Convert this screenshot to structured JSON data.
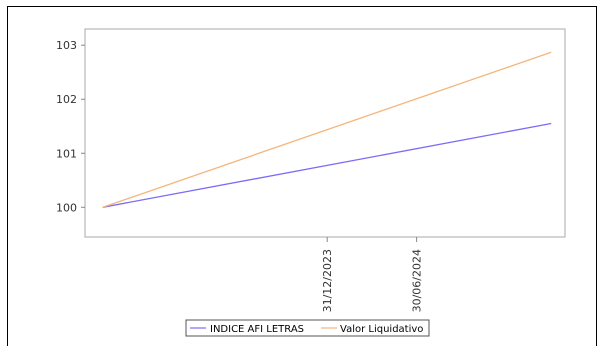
{
  "chart_data": {
    "type": "line",
    "title": "",
    "xlabel": "",
    "ylabel": "",
    "x": [
      "2022-09-30",
      "2025-03-31"
    ],
    "series": [
      {
        "name": "INDICE AFI LETRAS",
        "color": "#7b6cf6",
        "values": [
          100.0,
          101.55
        ]
      },
      {
        "name": "Valor Liquidativo",
        "color": "#f5b57a",
        "values": [
          100.0,
          102.87
        ]
      }
    ],
    "ylim": [
      99.45,
      103.3
    ],
    "yticks": [
      100,
      101,
      102,
      103
    ],
    "xlim": [
      "2022-08-25",
      "2025-04-28"
    ],
    "xticks": [
      {
        "date": "2023-12-31",
        "label": "31/12/2023"
      },
      {
        "date": "2024-06-30",
        "label": "30/06/2024"
      }
    ],
    "grid": false,
    "legend": "bottom"
  }
}
